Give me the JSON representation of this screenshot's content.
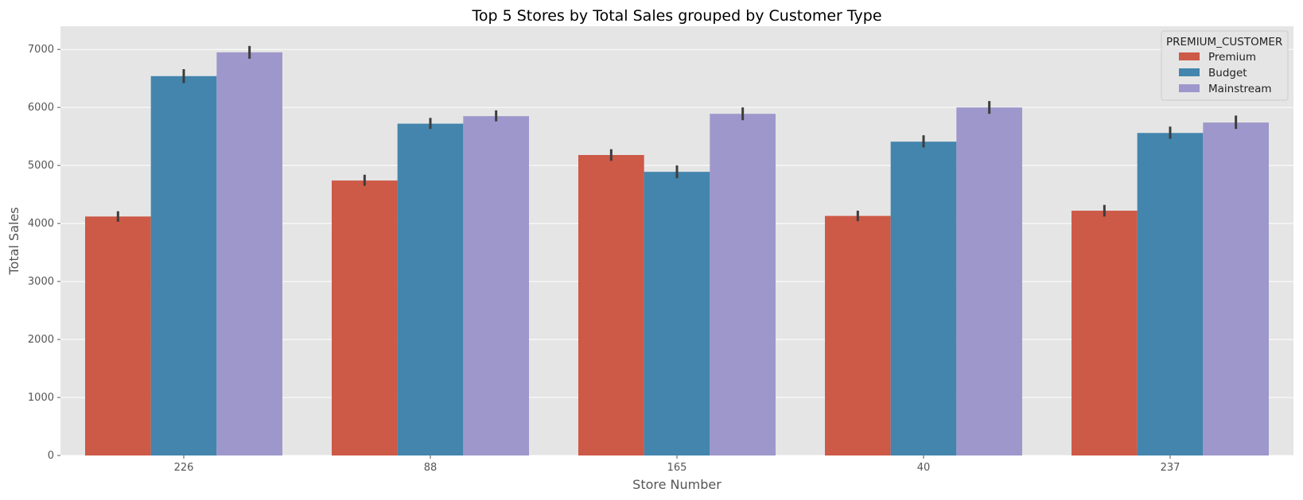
{
  "chart_data": {
    "type": "bar",
    "title": "Top 5 Stores by Total Sales grouped by Customer Type",
    "xlabel": "Store Number",
    "ylabel": "Total Sales",
    "categories": [
      "226",
      "88",
      "165",
      "40",
      "237"
    ],
    "ylim": [
      0,
      7400
    ],
    "yticks": [
      0,
      1000,
      2000,
      3000,
      4000,
      5000,
      6000,
      7000
    ],
    "grid": true,
    "legend": {
      "title": "PREMIUM_CUSTOMER",
      "placement": "top-right"
    },
    "series": [
      {
        "name": "Premium",
        "color": "#cd5947",
        "values": [
          4120,
          4740,
          5180,
          4130,
          4220
        ],
        "error": [
          [
            4030,
            4210
          ],
          [
            4650,
            4840
          ],
          [
            5080,
            5280
          ],
          [
            4040,
            4220
          ],
          [
            4120,
            4320
          ]
        ]
      },
      {
        "name": "Budget",
        "color": "#4385ad",
        "values": [
          6540,
          5720,
          4890,
          5410,
          5560
        ],
        "error": [
          [
            6420,
            6660
          ],
          [
            5630,
            5820
          ],
          [
            4780,
            5000
          ],
          [
            5310,
            5520
          ],
          [
            5460,
            5670
          ]
        ]
      },
      {
        "name": "Mainstream",
        "color": "#9e97cb",
        "values": [
          6950,
          5850,
          5890,
          6000,
          5740
        ],
        "error": [
          [
            6840,
            7060
          ],
          [
            5760,
            5950
          ],
          [
            5780,
            6000
          ],
          [
            5890,
            6110
          ],
          [
            5630,
            5860
          ]
        ]
      }
    ]
  }
}
